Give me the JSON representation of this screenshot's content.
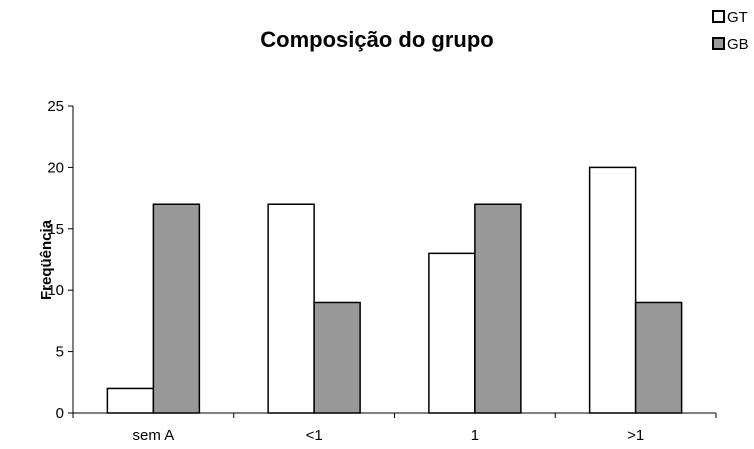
{
  "chart_data": {
    "type": "bar",
    "title": "Composição do grupo",
    "xlabel": "",
    "ylabel": "Freqüência",
    "categories": [
      "sem A",
      "<1",
      "1",
      ">1"
    ],
    "series": [
      {
        "name": "GT",
        "values": [
          2,
          17,
          13,
          20
        ],
        "color": "#ffffff"
      },
      {
        "name": "GB",
        "values": [
          17,
          9,
          17,
          9
        ],
        "color": "#999999"
      }
    ],
    "ylim": [
      0,
      25
    ],
    "yticks": [
      0,
      5,
      10,
      15,
      20,
      25
    ],
    "grid": false,
    "legend": "top-right"
  }
}
